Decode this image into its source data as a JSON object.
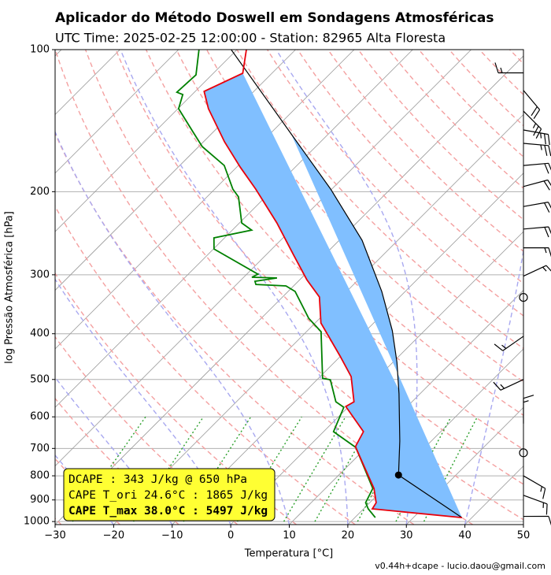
{
  "chart_data": {
    "type": "skewt",
    "title": "Aplicador do Método Doswell em Sondagens Atmosféricas",
    "subtitle": "UTC Time: 2025-02-25 12:00:00 - Station: 82965 Alta Floresta",
    "x_label": "Temperatura [°C]",
    "y_label": "log Pressão Atmosférica [hPa]",
    "xlim": [
      -30,
      50
    ],
    "xticks": [
      {
        "value": -30,
        "label": "−30"
      },
      {
        "value": -20,
        "label": "−20"
      },
      {
        "value": -10,
        "label": "−10"
      },
      0,
      10,
      20,
      30,
      40,
      50
    ],
    "ylim": [
      1015,
      100
    ],
    "yticks": [
      100,
      200,
      300,
      400,
      500,
      600,
      700,
      800,
      900,
      1000
    ],
    "ylog": true,
    "grid": true,
    "temperature": {
      "color": "#e8000b",
      "pressure": [
        100,
        112.2,
        122.6,
        133.4,
        156.8,
        177.4,
        197.5,
        233.0,
        271.8,
        307.3,
        334.4,
        379.6,
        446,
        493,
        557.6,
        570.5,
        645,
        694,
        851,
        912,
        940,
        981
      ],
      "values": [
        -78.4,
        -75.0,
        -78.5,
        -74.8,
        -66.4,
        -59.4,
        -53.0,
        -43.6,
        -35.4,
        -28.8,
        -23.7,
        -19.0,
        -10.1,
        -4.7,
        0.1,
        -0.5,
        6.8,
        8.0,
        18.3,
        21.1,
        21.5,
        38.3
      ]
    },
    "dewpoint": {
      "color": "#008000",
      "pressure": [
        100,
        113.1,
        123.1,
        124.5,
        133.4,
        149.1,
        160.5,
        176.0,
        197.5,
        205.2,
        233.0,
        241.2,
        250.6,
        264.5,
        299.1,
        303.7,
        304.7,
        309.6,
        314.4,
        316.8,
        325.4,
        370.9,
        396.0,
        496.9,
        500.7,
        557.6,
        572.7,
        645,
        696.6,
        851,
        912,
        940,
        981
      ],
      "values": [
        -86.5,
        -82.7,
        -83.0,
        -81.6,
        -79.9,
        -73.6,
        -69.4,
        -62.4,
        -56.9,
        -54.6,
        -49.6,
        -46.7,
        -51.8,
        -49.9,
        -38.1,
        -38.6,
        -34.2,
        -37.4,
        -36.7,
        -31.3,
        -28.8,
        -21.9,
        -17.5,
        -9.3,
        -7.7,
        -3.0,
        -0.7,
        1.7,
        8.2,
        18.1,
        19.3,
        20.8,
        23.5
      ]
    },
    "parcel": {
      "color": "#000000",
      "fill": "#80bfff",
      "pressure": [
        981,
        797,
        675,
        536,
        460,
        394,
        325.4,
        253.5,
        197.5,
        150.8,
        100
      ],
      "values": [
        38.3,
        20.2,
        14.6,
        6.4,
        0.7,
        -5.5,
        -14.0,
        -26.1,
        -40.2,
        -56.4,
        -81.0
      ]
    },
    "lcl": {
      "pressure": 797,
      "temperature": 20.2
    },
    "wind": {
      "pressure": [
        112,
        122,
        135,
        148,
        158,
        176,
        195,
        215,
        240,
        263,
        302,
        335,
        405,
        500,
        620,
        715,
        800,
        880,
        975
      ],
      "direction": [
        270,
        140,
        135,
        100,
        95,
        85,
        75,
        80,
        85,
        90,
        65,
        0,
        235,
        245,
        0,
        0,
        120,
        110,
        90
      ],
      "speed": [
        15,
        20,
        25,
        25,
        25,
        20,
        20,
        20,
        20,
        15,
        15,
        0,
        15,
        15,
        15,
        0,
        15,
        15,
        10
      ]
    },
    "info_box": {
      "lines": [
        "DCAPE : 343 J/kg @ 650 hPa",
        "CAPE T_ori 24.6°C : 1865 J/kg",
        "CAPE T_max 38.0°C : 5497 J/kg"
      ]
    },
    "footer": "v0.44h+dcape  -  lucio.daou@gmail.com"
  }
}
